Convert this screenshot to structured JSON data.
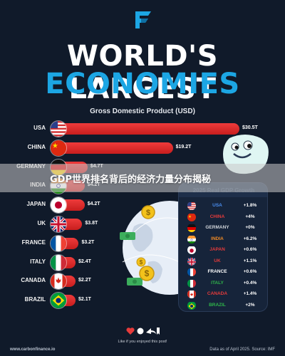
{
  "title": {
    "line1": "WORLD'S LARGEST",
    "line2": "ECONOMIES"
  },
  "banner": "GDP世界排名背后的经济力量分布揭秘",
  "colors": {
    "accent": "#1ca6e4",
    "bar": "#e12a2a",
    "background": "#101a2a"
  },
  "chart_data": {
    "type": "bar",
    "title": "Gross Domestic Product (USD)",
    "categories": [
      "USA",
      "CHINA",
      "GERMANY",
      "INDIA",
      "JAPAN",
      "UK",
      "FRANCE",
      "ITALY",
      "CANADA",
      "BRAZIL"
    ],
    "values": [
      30.5,
      19.2,
      4.7,
      4.2,
      4.2,
      3.8,
      3.2,
      2.4,
      2.2,
      2.1
    ],
    "value_labels": [
      "$30.5T",
      "$19.2T",
      "$4.7T",
      "$4.2T",
      "$4.2T",
      "$3.8T",
      "$3.2T",
      "$2.4T",
      "$2.2T",
      "$2.1T"
    ],
    "unit": "trillion USD"
  },
  "growth_panel": {
    "title": "2025 Real GDP Growth",
    "rows": [
      {
        "country": "USA",
        "value": "+1.8%",
        "color": "#4a8ef0"
      },
      {
        "country": "CHINA",
        "value": "+4%",
        "color": "#e63b3b"
      },
      {
        "country": "GERMANY",
        "value": "+0%",
        "color": "#d0d4da"
      },
      {
        "country": "INDIA",
        "value": "+6.2%",
        "color": "#f08a24"
      },
      {
        "country": "JAPAN",
        "value": "+0.6%",
        "color": "#e63b3b"
      },
      {
        "country": "UK",
        "value": "+1.1%",
        "color": "#e63b3b"
      },
      {
        "country": "FRANCE",
        "value": "+0.6%",
        "color": "#ffffff"
      },
      {
        "country": "ITALY",
        "value": "+0.4%",
        "color": "#2fb44a"
      },
      {
        "country": "CANADA",
        "value": "+1.4%",
        "color": "#e63b3b"
      },
      {
        "country": "BRAZIL",
        "value": "+2%",
        "color": "#2fb44a"
      }
    ]
  },
  "footer": {
    "website": "www.carbonfinance.io",
    "share_prompt": "Like if you enjoyed this post!",
    "source": "Data as of April 2025. Source: IMF"
  }
}
